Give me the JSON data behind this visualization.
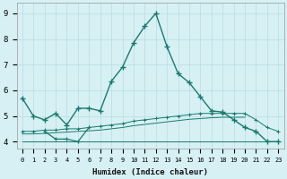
{
  "xlabel": "Humidex (Indice chaleur)",
  "bg_color": "#d6f0f4",
  "line_color": "#1a7a6e",
  "grid_color": "#b8dde4",
  "x_ticks": [
    0,
    1,
    2,
    3,
    4,
    5,
    6,
    7,
    8,
    9,
    10,
    11,
    12,
    13,
    14,
    15,
    16,
    17,
    18,
    19,
    20,
    21,
    22,
    23
  ],
  "y_ticks": [
    4,
    5,
    6,
    7,
    8,
    9
  ],
  "xlim": [
    -0.5,
    23.5
  ],
  "ylim": [
    3.72,
    9.4
  ],
  "main_x": [
    0,
    1,
    2,
    3,
    4,
    5,
    6,
    7,
    8,
    9,
    10,
    11,
    12,
    13,
    14,
    15,
    16,
    17,
    18,
    19,
    20,
    21,
    22,
    23
  ],
  "main_y": [
    5.7,
    5.0,
    4.85,
    5.1,
    4.65,
    5.3,
    5.3,
    5.2,
    6.35,
    6.9,
    7.85,
    8.5,
    9.0,
    7.7,
    6.65,
    6.3,
    5.75,
    5.2,
    5.15,
    4.85,
    4.55,
    4.4,
    4.0,
    4.0
  ],
  "zigzag_x": [
    2,
    3,
    4,
    5,
    6
  ],
  "zigzag_y": [
    4.4,
    4.1,
    4.1,
    4.0,
    4.55
  ],
  "flat_x": [
    0,
    1,
    2,
    3,
    4,
    5,
    6,
    7,
    8,
    9,
    10,
    11,
    12,
    13,
    14,
    15,
    16,
    17,
    18,
    19,
    20,
    21,
    22,
    23
  ],
  "flat_y": [
    4.0,
    4.0,
    4.0,
    4.0,
    4.0,
    4.0,
    4.0,
    4.0,
    4.0,
    4.0,
    4.0,
    4.0,
    4.0,
    4.0,
    4.0,
    4.0,
    4.0,
    4.0,
    4.0,
    4.0,
    4.0,
    4.0,
    4.0,
    4.0
  ],
  "upper_x": [
    0,
    1,
    2,
    3,
    4,
    5,
    6,
    7,
    8,
    9,
    10,
    11,
    12,
    13,
    14,
    15,
    16,
    17,
    18,
    19,
    20,
    21,
    22,
    23
  ],
  "upper_y": [
    4.4,
    4.4,
    4.45,
    4.45,
    4.5,
    4.5,
    4.55,
    4.6,
    4.65,
    4.7,
    4.8,
    4.85,
    4.9,
    4.95,
    5.0,
    5.05,
    5.1,
    5.1,
    5.1,
    5.1,
    5.1,
    4.85,
    4.55,
    4.4
  ],
  "lower_x": [
    0,
    1,
    2,
    3,
    4,
    5,
    6,
    7,
    8,
    9,
    10,
    11,
    12,
    13,
    14,
    15,
    16,
    17,
    18,
    19,
    20
  ],
  "lower_y": [
    4.3,
    4.3,
    4.32,
    4.35,
    4.37,
    4.4,
    4.42,
    4.45,
    4.5,
    4.55,
    4.62,
    4.67,
    4.72,
    4.77,
    4.82,
    4.87,
    4.9,
    4.93,
    4.95,
    4.95,
    4.95
  ]
}
